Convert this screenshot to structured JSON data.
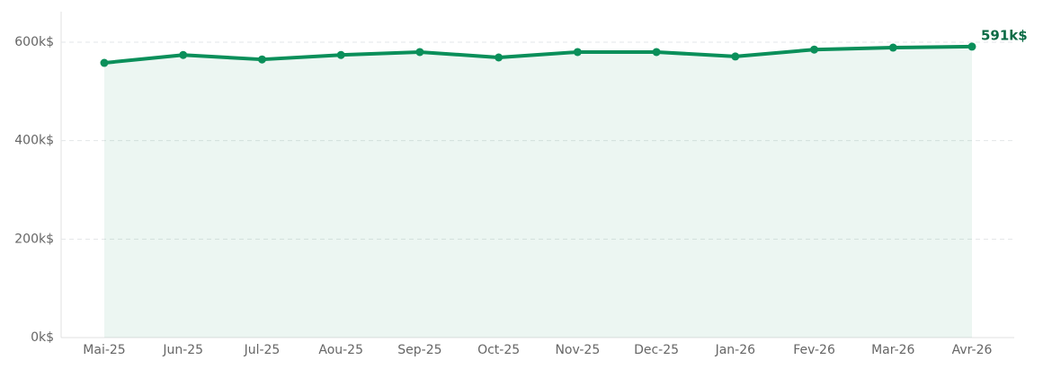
{
  "chart_data": {
    "type": "line",
    "categories": [
      "Mai-25",
      "Jun-25",
      "Jul-25",
      "Aou-25",
      "Sep-25",
      "Oct-25",
      "Nov-25",
      "Dec-25",
      "Jan-26",
      "Fev-26",
      "Mar-26",
      "Avr-26"
    ],
    "values": [
      558,
      574,
      565,
      574,
      580,
      569,
      580,
      580,
      571,
      585,
      589,
      591
    ],
    "value_labels": [
      null,
      null,
      null,
      null,
      null,
      null,
      null,
      null,
      null,
      null,
      null,
      "591k$"
    ],
    "color": "#0a8f5a",
    "area": true,
    "ylim": [
      0,
      662
    ],
    "yticks": [
      {
        "value": 0,
        "label": "0k$"
      },
      {
        "value": 200,
        "label": "200k$"
      },
      {
        "value": 400,
        "label": "400k$"
      },
      {
        "value": 600,
        "label": "600k$"
      }
    ],
    "grid": true
  }
}
